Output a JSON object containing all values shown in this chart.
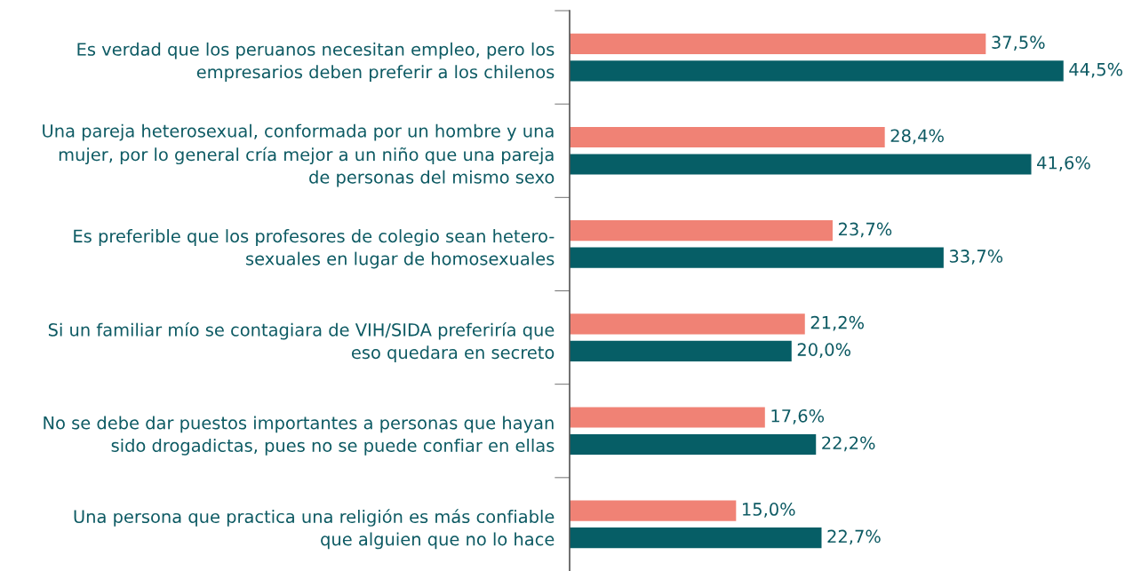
{
  "chart_data": {
    "type": "bar",
    "orientation": "horizontal",
    "categories": [
      "Es verdad que los peruanos necesitan empleo, pero los\nempresarios deben preferir a los chilenos",
      "Una pareja heterosexual, conformada por un hombre y una\nmujer, por lo general cría mejor a un niño que una pareja\nde personas del mismo sexo",
      "Es preferible que los profesores de colegio sean hetero-\nsexuales en lugar de homosexuales",
      "Si un familiar mío se contagiara de VIH/SIDA preferiría que\neso quedara en secreto",
      "No se debe dar puestos importantes a personas que hayan\nsido drogadictas, pues no se puede confiar en ellas",
      "Una persona que practica una religión es más confiable\nque alguien que no lo hace"
    ],
    "series": [
      {
        "color": "#f08275",
        "values": [
          37.5,
          28.4,
          23.7,
          21.2,
          17.6,
          15.0
        ],
        "value_labels": [
          "37,5%",
          "28,4%",
          "23,7%",
          "21,2%",
          "17,6%",
          "15,0%"
        ]
      },
      {
        "color": "#065e66",
        "values": [
          44.5,
          41.6,
          33.7,
          20.0,
          22.2,
          22.7
        ],
        "value_labels": [
          "44,5%",
          "41,6%",
          "33,7%",
          "20,0%",
          "22,2%",
          "22,7%"
        ]
      }
    ],
    "tick_labels": "y",
    "grid": false,
    "legend": false
  }
}
